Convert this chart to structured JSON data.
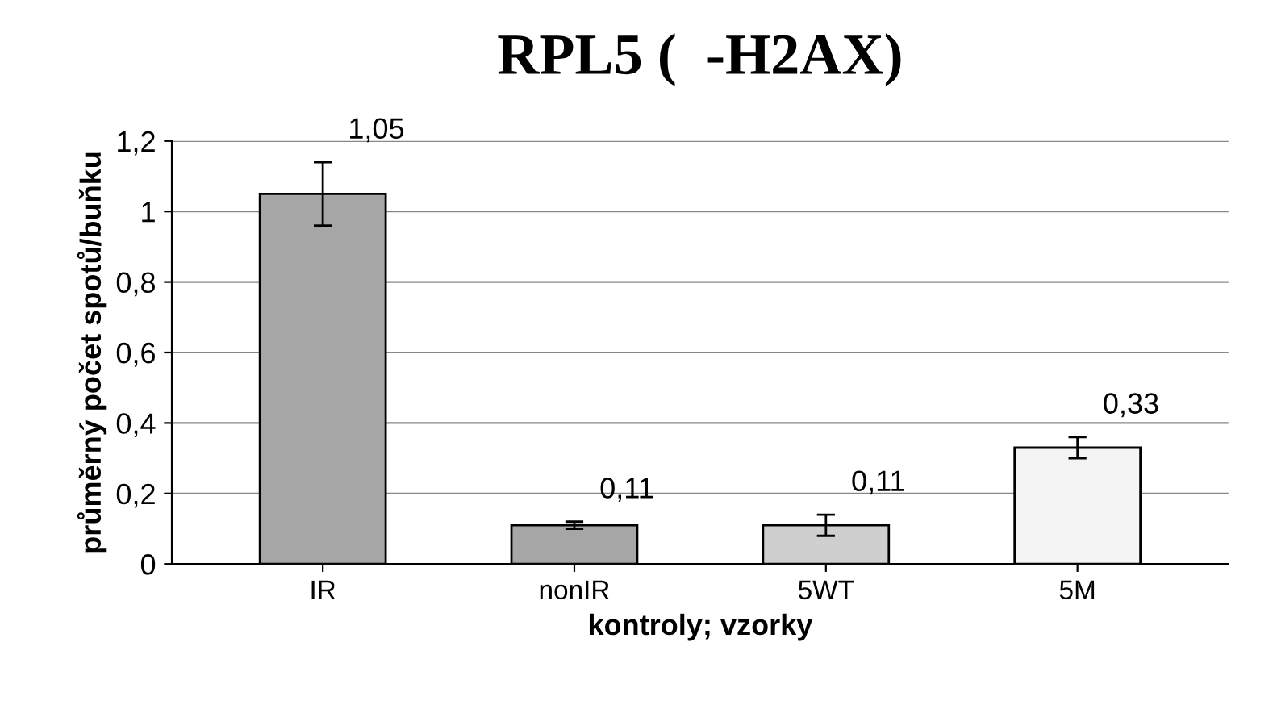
{
  "chart_data": {
    "type": "bar",
    "title": "RPL5 (  -H2AX)",
    "xlabel": "kontroly; vzorky",
    "ylabel": "průměrný počet spotů/buňku",
    "categories": [
      "IR",
      "nonIR",
      "5WT",
      "5M"
    ],
    "values": [
      1.05,
      0.11,
      0.11,
      0.33
    ],
    "errors": [
      0.09,
      0.01,
      0.03,
      0.03
    ],
    "value_labels": [
      "1,05",
      "0,11",
      "0,11",
      "0,33"
    ],
    "colors": [
      "#a6a6a6",
      "#a6a6a6",
      "#cfcfcf",
      "#f4f4f4"
    ],
    "ylim": [
      0,
      1.2
    ],
    "yticks": [
      0,
      {
        "value": 0.2,
        "label": "0,2"
      },
      {
        "value": 0.4,
        "label": "0,4"
      },
      {
        "value": 0.6,
        "label": "0,6"
      },
      {
        "value": 0.8,
        "label": "0,8"
      },
      1,
      {
        "value": 1.2,
        "label": "1,2"
      }
    ],
    "grid": "y"
  }
}
